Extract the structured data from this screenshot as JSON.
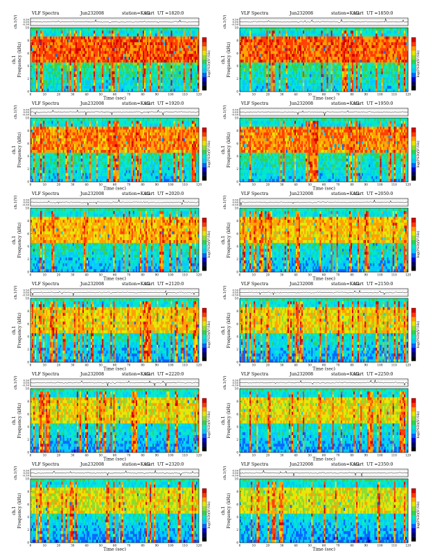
{
  "page": {
    "title_prefix": "VLF Spectra",
    "station_text": "station=KAG",
    "ut_prefix": "start UT =",
    "colors": {
      "spec": [
        "#000000",
        "#00005a",
        "#0000c8",
        "#0064ff",
        "#00c8ff",
        "#00e8c8",
        "#32d250",
        "#8cdc28",
        "#e6e600",
        "#ffa000",
        "#ff3c00",
        "#d20000"
      ]
    }
  },
  "chart_data": [
    {
      "type": "heatmap",
      "title": "VLF Spectra",
      "date": "Jun232008",
      "station": "station=KAG",
      "start_ut": "1820:0",
      "ylabel_top": "ch.1(V)",
      "ylabel_spec": "ch.1\nFrequency (kHz)",
      "xlabel": "Time (sec)",
      "clabel": "log(PSD)(V²/Hz)",
      "xlim": [
        0,
        120
      ],
      "ylim": [
        0,
        10
      ],
      "top_ylim": [
        -0.5,
        0.5
      ],
      "top_ticks": [
        "0.50",
        "0.00",
        "-0.50"
      ],
      "xticks": [
        0,
        10,
        20,
        30,
        40,
        50,
        60,
        70,
        80,
        90,
        100,
        110,
        120
      ],
      "yticks": [
        0,
        2,
        4,
        6,
        8,
        10
      ],
      "intensity": 0.85
    },
    {
      "type": "heatmap",
      "title": "VLF Spectra",
      "date": "Jun232008",
      "station": "station=KAG",
      "start_ut": "1850:0",
      "ylabel_top": "ch.1(V)",
      "ylabel_spec": "ch.1\nFrequency (kHz)",
      "xlabel": "Time (sec)",
      "clabel": "log(PSD)(V²/Hz)",
      "xlim": [
        0,
        120
      ],
      "ylim": [
        0,
        10
      ],
      "top_ylim": [
        -0.5,
        0.5
      ],
      "top_ticks": [
        "0.50",
        "0.00",
        "-0.50"
      ],
      "xticks": [
        0,
        10,
        20,
        30,
        40,
        50,
        60,
        70,
        80,
        90,
        100,
        110,
        120
      ],
      "yticks": [
        0,
        2,
        4,
        6,
        8,
        10
      ],
      "intensity": 0.82
    },
    {
      "type": "heatmap",
      "title": "VLF Spectra",
      "date": "Jun232008",
      "station": "station=KAG",
      "start_ut": "1920:0",
      "ylabel_top": "ch.1(V)",
      "ylabel_spec": "ch.1\nFrequency (kHz)",
      "xlabel": "Time (sec)",
      "clabel": "log(PSD)(V²/Hz)",
      "xlim": [
        0,
        120
      ],
      "ylim": [
        0,
        10
      ],
      "top_ylim": [
        -0.5,
        0.5
      ],
      "top_ticks": [
        "0.50",
        "0.00",
        "-0.50"
      ],
      "xticks": [
        0,
        10,
        20,
        30,
        40,
        50,
        60,
        70,
        80,
        90,
        100,
        110,
        120
      ],
      "yticks": [
        0,
        2,
        4,
        6,
        8,
        10
      ],
      "intensity": 0.72
    },
    {
      "type": "heatmap",
      "title": "VLF Spectra",
      "date": "Jun232008",
      "station": "station=KAG",
      "start_ut": "1950:0",
      "ylabel_top": "ch.1(V)",
      "ylabel_spec": "ch.1\nFrequency (kHz)",
      "xlabel": "Time (sec)",
      "clabel": "log(PSD)(V²/Hz)",
      "xlim": [
        0,
        120
      ],
      "ylim": [
        0,
        10
      ],
      "top_ylim": [
        -0.5,
        0.5
      ],
      "top_ticks": [
        "0.50",
        "0.00",
        "-0.50"
      ],
      "xticks": [
        0,
        10,
        20,
        30,
        40,
        50,
        60,
        70,
        80,
        90,
        100,
        110,
        120
      ],
      "yticks": [
        0,
        2,
        4,
        6,
        8,
        10
      ],
      "intensity": 0.74
    },
    {
      "type": "heatmap",
      "title": "VLF Spectra",
      "date": "Jun232008",
      "station": "station=KAG",
      "start_ut": "2020:0",
      "ylabel_top": "ch.1(V)",
      "ylabel_spec": "ch.1\nFrequency (kHz)",
      "xlabel": "Time (sec)",
      "clabel": "log(PSD)(V²/Hz)",
      "xlim": [
        0,
        120
      ],
      "ylim": [
        0,
        10
      ],
      "top_ylim": [
        -0.5,
        0.5
      ],
      "top_ticks": [
        "0.50",
        "0.00",
        "-0.50"
      ],
      "xticks": [
        0,
        10,
        20,
        30,
        40,
        50,
        60,
        70,
        80,
        90,
        100,
        110,
        120
      ],
      "yticks": [
        0,
        2,
        4,
        6,
        8,
        10
      ],
      "intensity": 0.6
    },
    {
      "type": "heatmap",
      "title": "VLF Spectra",
      "date": "Jun232008",
      "station": "station=KAG",
      "start_ut": "2050:0",
      "ylabel_top": "ch.1(V)",
      "ylabel_spec": "ch.1\nFrequency (kHz)",
      "xlabel": "Time (sec)",
      "clabel": "log(PSD)(V²/Hz)",
      "xlim": [
        0,
        120
      ],
      "ylim": [
        0,
        10
      ],
      "top_ylim": [
        -0.5,
        0.5
      ],
      "top_ticks": [
        "0.50",
        "0.00",
        "-0.50"
      ],
      "xticks": [
        0,
        10,
        20,
        30,
        40,
        50,
        60,
        70,
        80,
        90,
        100,
        110,
        120
      ],
      "yticks": [
        0,
        2,
        4,
        6,
        8,
        10
      ],
      "intensity": 0.55
    },
    {
      "type": "heatmap",
      "title": "VLF Spectra",
      "date": "Jun232008",
      "station": "station=KAG",
      "start_ut": "2120:0",
      "ylabel_top": "ch.1(V)",
      "ylabel_spec": "ch.1\nFrequency (kHz)",
      "xlabel": "Time (sec)",
      "clabel": "log(PSD)(V²/Hz)",
      "xlim": [
        0,
        120
      ],
      "ylim": [
        0,
        10
      ],
      "top_ylim": [
        -0.5,
        0.5
      ],
      "top_ticks": [
        "0.50",
        "0.00",
        "-0.50"
      ],
      "xticks": [
        0,
        10,
        20,
        30,
        40,
        50,
        60,
        70,
        80,
        90,
        100,
        110,
        120
      ],
      "yticks": [
        0,
        2,
        4,
        6,
        8,
        10
      ],
      "intensity": 0.5
    },
    {
      "type": "heatmap",
      "title": "VLF Spectra",
      "date": "Jun232008",
      "station": "station=KAG",
      "start_ut": "2150:0",
      "ylabel_top": "ch.1(V)",
      "ylabel_spec": "ch.1\nFrequency (kHz)",
      "xlabel": "Time (sec)",
      "clabel": "log(PSD)(V²/Hz)",
      "xlim": [
        0,
        120
      ],
      "ylim": [
        0,
        10
      ],
      "top_ylim": [
        -0.5,
        0.5
      ],
      "top_ticks": [
        "0.50",
        "0.00",
        "-0.50"
      ],
      "xticks": [
        0,
        10,
        20,
        30,
        40,
        50,
        60,
        70,
        80,
        90,
        100,
        110,
        120
      ],
      "yticks": [
        0,
        2,
        4,
        6,
        8,
        10
      ],
      "intensity": 0.48
    },
    {
      "type": "heatmap",
      "title": "VLF Spectra",
      "date": "Jun232008",
      "station": "station=KAG",
      "start_ut": "2220:0",
      "ylabel_top": "ch.1(V)",
      "ylabel_spec": "ch.1\nFrequency (kHz)",
      "xlabel": "Time (sec)",
      "clabel": "log(PSD)(V²/Hz)",
      "xlim": [
        0,
        120
      ],
      "ylim": [
        0,
        10
      ],
      "top_ylim": [
        -0.5,
        0.5
      ],
      "top_ticks": [
        "0.50",
        "0.00",
        "-0.50"
      ],
      "xticks": [
        0,
        10,
        20,
        30,
        40,
        50,
        60,
        70,
        80,
        90,
        100,
        110,
        120
      ],
      "yticks": [
        0,
        2,
        4,
        6,
        8,
        10
      ],
      "intensity": 0.45
    },
    {
      "type": "heatmap",
      "title": "VLF Spectra",
      "date": "Jun232008",
      "station": "station=KAG",
      "start_ut": "2250:0",
      "ylabel_top": "ch.1(V)",
      "ylabel_spec": "ch.1\nFrequency (kHz)",
      "xlabel": "Time (sec)",
      "clabel": "log(PSD)(V²/Hz)",
      "xlim": [
        0,
        120
      ],
      "ylim": [
        0,
        10
      ],
      "top_ylim": [
        -0.5,
        0.5
      ],
      "top_ticks": [
        "0.50",
        "0.00",
        "-0.50"
      ],
      "xticks": [
        0,
        10,
        20,
        30,
        40,
        50,
        60,
        70,
        80,
        90,
        100,
        110,
        120
      ],
      "yticks": [
        0,
        2,
        4,
        6,
        8,
        10
      ],
      "intensity": 0.45
    },
    {
      "type": "heatmap",
      "title": "VLF Spectra",
      "date": "Jun232008",
      "station": "station=KAG",
      "start_ut": "2320:0",
      "ylabel_top": "ch.1(V)",
      "ylabel_spec": "ch.1\nFrequency (kHz)",
      "xlabel": "Time (sec)",
      "clabel": "log(PSD)(V²/Hz)",
      "xlim": [
        0,
        120
      ],
      "ylim": [
        0,
        10
      ],
      "top_ylim": [
        -0.5,
        0.5
      ],
      "top_ticks": [
        "0.50",
        "0.00",
        "-0.50"
      ],
      "xticks": [
        0,
        10,
        20,
        30,
        40,
        50,
        60,
        70,
        80,
        90,
        100,
        110,
        120
      ],
      "yticks": [
        0,
        2,
        4,
        6,
        8,
        10
      ],
      "intensity": 0.4
    },
    {
      "type": "heatmap",
      "title": "VLF Spectra",
      "date": "Jun232008",
      "station": "station=KAG",
      "start_ut": "2350:0",
      "ylabel_top": "ch.1(V)",
      "ylabel_spec": "ch.1\nFrequency (kHz)",
      "xlabel": "Time (sec)",
      "clabel": "log(PSD)(V²/Hz)",
      "xlim": [
        0,
        120
      ],
      "ylim": [
        0,
        10
      ],
      "top_ylim": [
        -0.5,
        0.5
      ],
      "top_ticks": [
        "0.50",
        "0.00",
        "-0.50"
      ],
      "xticks": [
        0,
        10,
        20,
        30,
        40,
        50,
        60,
        70,
        80,
        90,
        100,
        110,
        120
      ],
      "yticks": [
        0,
        2,
        4,
        6,
        8,
        10
      ],
      "intensity": 0.38
    }
  ]
}
